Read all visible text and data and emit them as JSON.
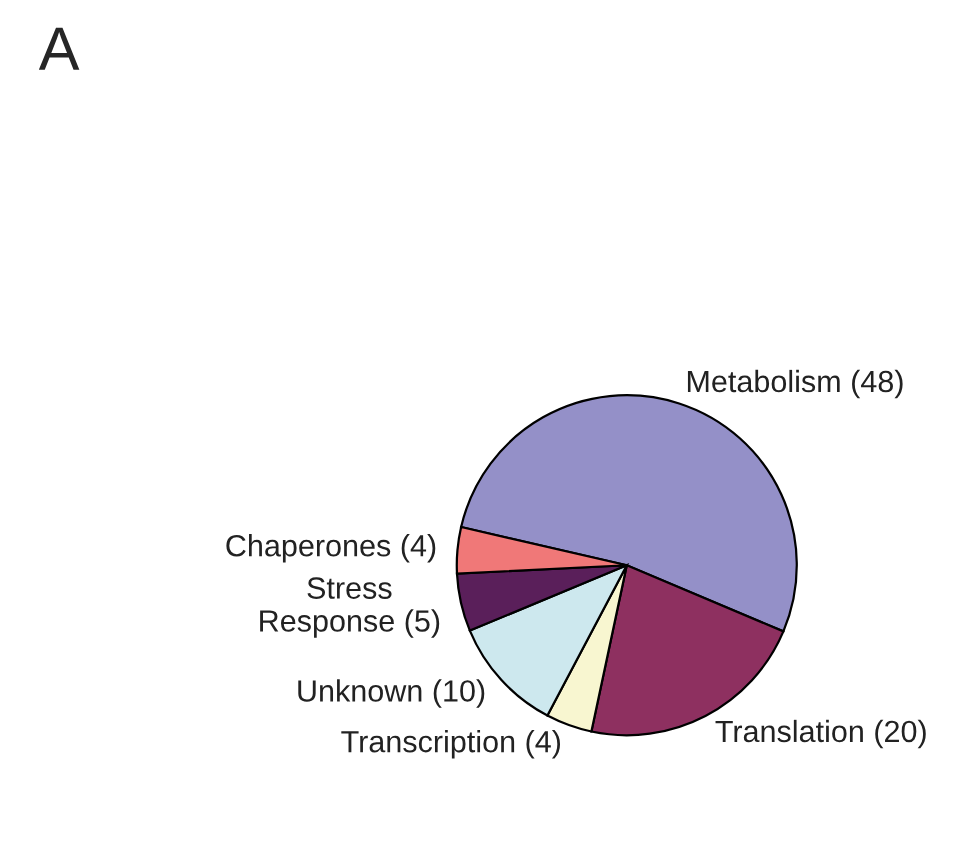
{
  "chart_data": {
    "type": "pie",
    "annotations": [
      "A"
    ],
    "categories": [
      "Metabolism (48)",
      "Translation (20)",
      "Transcription (4)",
      "Unknown (10)",
      "Stress Response (5)",
      "Chaperones (4)"
    ],
    "values": [
      48,
      20,
      4,
      10,
      5,
      4
    ],
    "colors": [
      "#9490c8",
      "#8e3060",
      "#f8f6d0",
      "#cde8ee",
      "#5a1f5a",
      "#f07878"
    ]
  }
}
